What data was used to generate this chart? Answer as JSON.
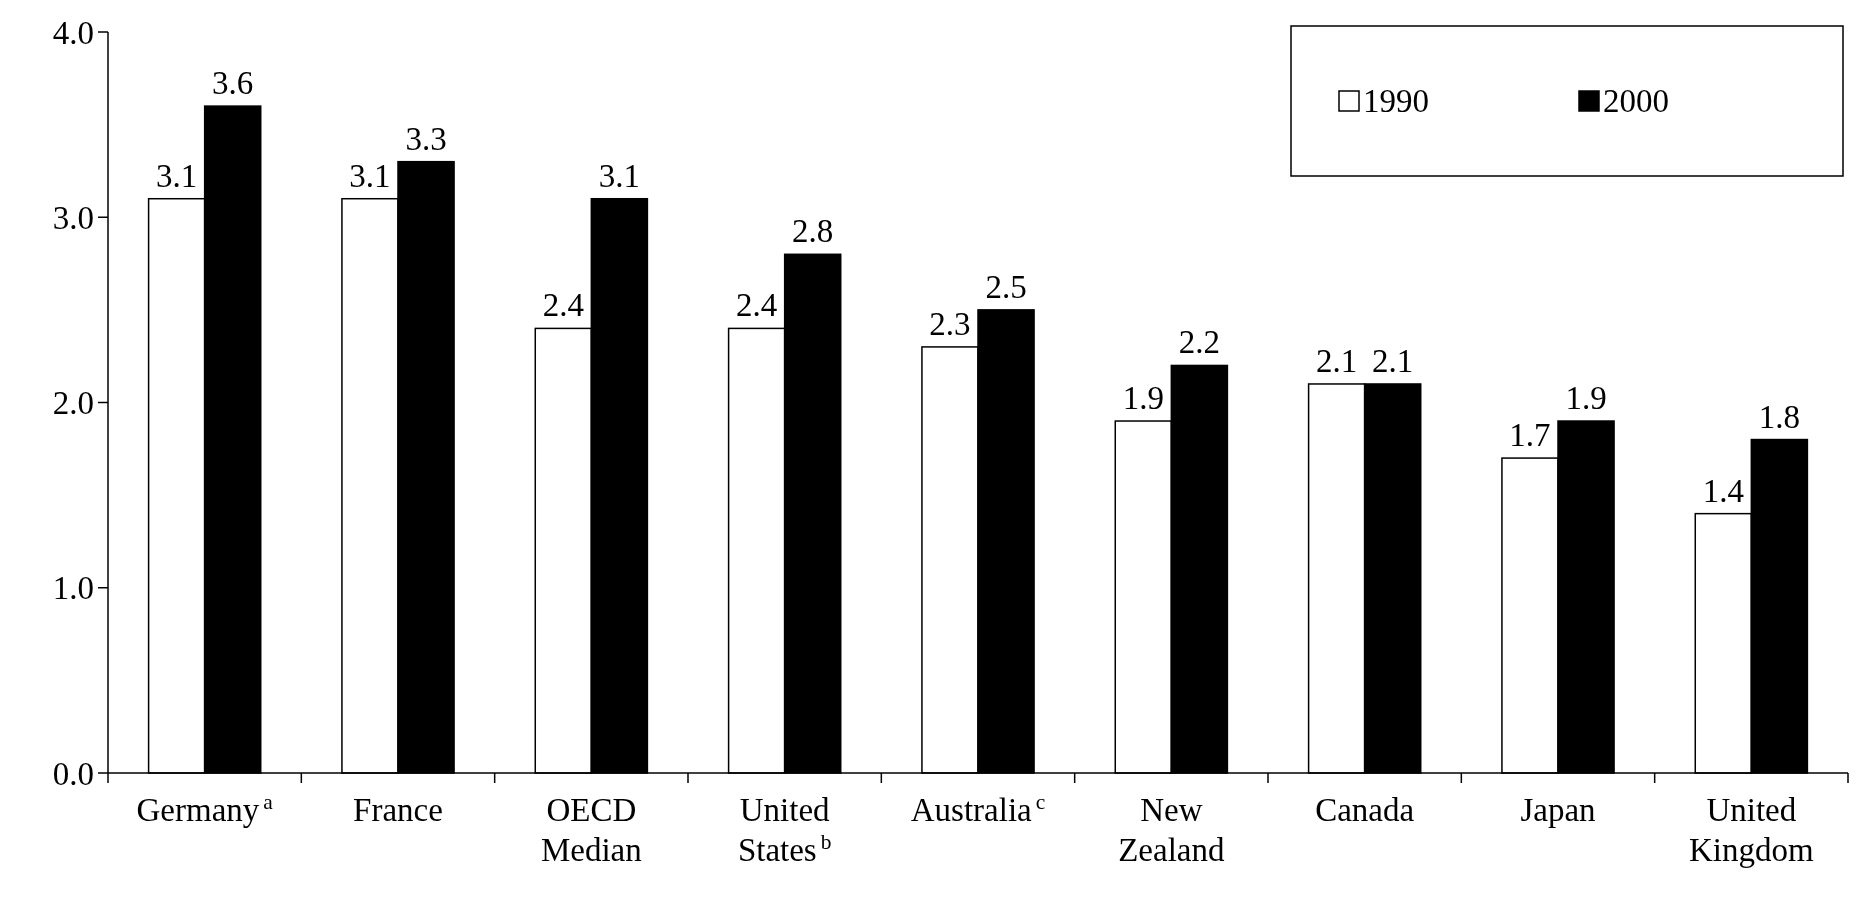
{
  "chart_data": {
    "type": "bar",
    "categories": [
      "Germany$^{a}$",
      "France",
      "OECD Median",
      "United States$^{b}$",
      "Australia$^{c}$",
      "New Zealand",
      "Canada",
      "Japan",
      "United Kingdom"
    ],
    "series": [
      {
        "name": "1990",
        "color": "#ffffff",
        "values": [
          3.1,
          3.1,
          2.4,
          2.4,
          2.3,
          1.9,
          2.1,
          1.7,
          1.4
        ]
      },
      {
        "name": "2000",
        "color": "#000000",
        "values": [
          3.6,
          3.3,
          3.1,
          2.8,
          2.5,
          2.2,
          2.1,
          1.9,
          1.8
        ]
      }
    ],
    "ylim": [
      0,
      4
    ],
    "yticks": [
      {
        "value": 0,
        "label": "0.0"
      },
      {
        "value": 1,
        "label": "1.0"
      },
      {
        "value": 2,
        "label": "2.0"
      },
      {
        "value": 3,
        "label": "3.0"
      },
      {
        "value": 4,
        "label": "4.0"
      }
    ],
    "data_labels": true,
    "legend": "top right",
    "grid": false
  }
}
